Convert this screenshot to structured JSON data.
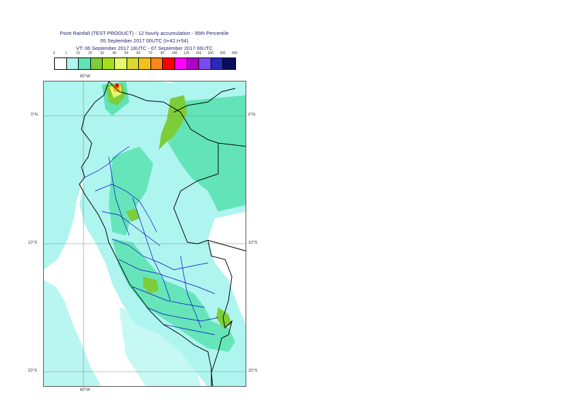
{
  "title": {
    "line1": "Point Rainfall (TEST PRODUCT) - 12 hourly accumulation - 95th Percentile",
    "line2": "05 September 2017 00UTC (t+42,t+54)",
    "line3": "VT: 06 September 2017 18UTC - 07 September 2017 06UTC"
  },
  "legend": {
    "thresholds": [
      "0",
      "1",
      "10",
      "20",
      "30",
      "40",
      "50",
      "60",
      "70",
      "80",
      "100",
      "125",
      "150",
      "200",
      "300",
      "500"
    ],
    "colors": [
      "#ffffff",
      "#aef5ef",
      "#5fe3b4",
      "#7ccd3a",
      "#a2e018",
      "#e7fb6c",
      "#d9d92e",
      "#f5c01c",
      "#f78a1a",
      "#ff0000",
      "#ff00ff",
      "#b100c8",
      "#7a4cf0",
      "#2a2ab8",
      "#0c0c5c"
    ]
  },
  "map": {
    "lon_label_top": "80°W",
    "lon_label_bottom": "80°W",
    "lat_labels_left": [
      "0°N",
      "10°S",
      "20°S"
    ],
    "lat_labels_right": [
      "0°N",
      "10°S",
      "20°S"
    ],
    "colors": {
      "light_cyan": "#aef5ef",
      "mid_green": "#5fe3b4",
      "green": "#7ccd3a",
      "yellow": "#e7fb6c",
      "orange": "#f5c01c",
      "red": "#ff0000",
      "coast": "#000000",
      "admin": "#0000cc",
      "grid": "#888888"
    }
  }
}
